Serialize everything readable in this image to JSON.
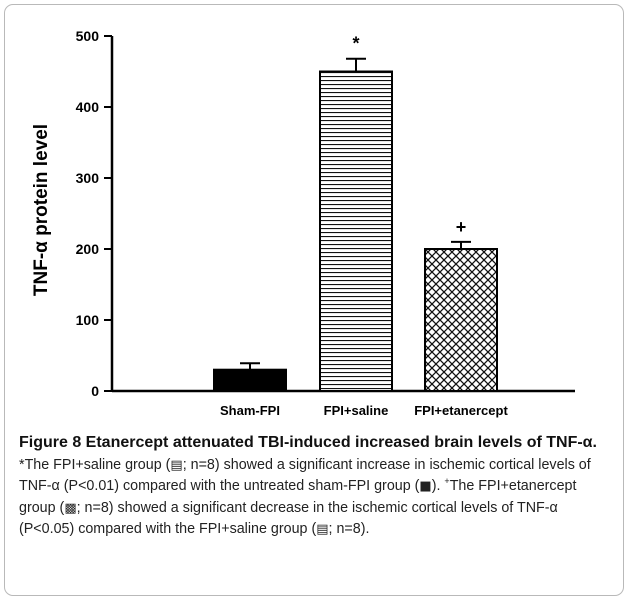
{
  "chart_data": {
    "type": "bar",
    "categories": [
      "Sham-FPI",
      "FPI+saline",
      "FPI+etanercept"
    ],
    "values": [
      30,
      450,
      200
    ],
    "errors": [
      9,
      18,
      10
    ],
    "patterns": [
      "solid",
      "horizontal-lines",
      "crosshatch"
    ],
    "annotations": [
      "",
      "*",
      "+"
    ],
    "ylabel": "TNF-α protein level",
    "ylim": [
      0,
      500
    ],
    "yticks": [
      "0",
      "100",
      "200",
      "300",
      "400",
      "500"
    ],
    "grid": false
  },
  "caption": {
    "title": "Figure 8 Etanercept attenuated TBI-induced increased brain levels of TNF-α.",
    "p1": "*The FPI+saline group (",
    "sw_saline": "▤",
    "p2": "; n=8) showed a significant increase in ischemic cortical levels of TNF-α (P<0.01) compared with the untreated sham-FPI group (",
    "sw_sham": "■",
    "p3": ").",
    "plus": "+",
    "p4": "The FPI+etanercept group (",
    "sw_etan": "▩",
    "p5": "; n=8) showed a significant decrease in the ischemic cortical levels of TNF-α (P<0.05) compared with the FPI+saline group (",
    "sw_saline2": "▤",
    "p6": "; n=8)."
  }
}
